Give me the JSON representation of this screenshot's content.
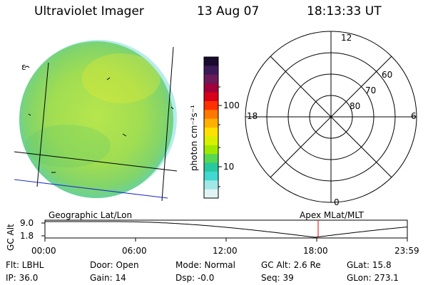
{
  "header": {
    "instrument": "Ultraviolet Imager",
    "date": "13 Aug 07",
    "time": "18:13:33 UT"
  },
  "colorbar": {
    "label": "photon cm⁻²s⁻¹",
    "ticks": [
      "100",
      "10"
    ],
    "colors": [
      "#1a0a2e",
      "#3c1a58",
      "#6a1a5a",
      "#a0003c",
      "#d80018",
      "#ff3000",
      "#ff7800",
      "#ffb000",
      "#ffe000",
      "#d8f000",
      "#a0e800",
      "#58d850",
      "#28c8a0",
      "#40d8d0",
      "#a0e8e8",
      "#e0f4f4"
    ]
  },
  "polar_plot": {
    "mlt_labels": [
      "12",
      "18",
      "6",
      "0"
    ],
    "lat_labels": [
      "60",
      "70",
      "80"
    ]
  },
  "timeline": {
    "left_label": "Geographic Lat/Lon",
    "right_label": "Apex MLat/MLT",
    "yaxis_title": "GC Alt",
    "y_ticks": [
      "9.0",
      "1.8"
    ],
    "x_ticks": [
      "00:00",
      "06:00",
      "12:00",
      "18:00",
      "23:59"
    ],
    "current_time": "18:13"
  },
  "info": {
    "flt": "Flt: LBHL",
    "door": "Door: Open",
    "mode": "Mode: Normal",
    "gc_alt": "GC Alt: 2.6 Re",
    "glat": "GLat:  15.8",
    "ip": "IP: 36.0",
    "gain": "Gain: 14",
    "dsp": "Dsp:   -0.0",
    "seq": "Seq: 39",
    "glon": "GLon: 273.1"
  }
}
